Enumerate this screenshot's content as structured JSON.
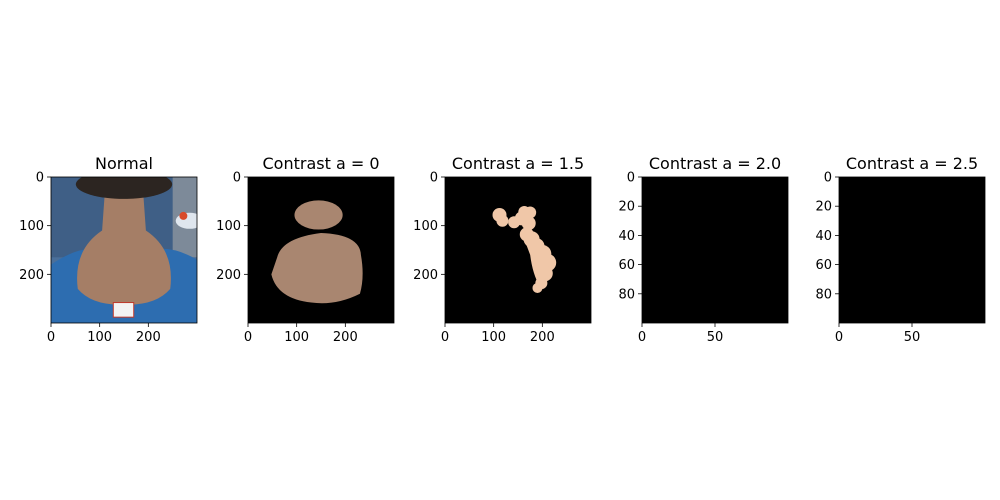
{
  "figure": {
    "background": "#ffffff"
  },
  "chart_data": [
    {
      "type": "image",
      "title": "Normal",
      "image_extent": [
        300,
        300
      ],
      "xlim": [
        0,
        300
      ],
      "ylim": [
        300,
        0
      ],
      "x_ticks": [
        0,
        100,
        200
      ],
      "y_ticks": [
        0,
        100,
        200
      ],
      "content": "photo",
      "colors": {
        "background": "#4a6f9a",
        "skin": "#a57e66",
        "shirt": "#2d6db0",
        "hair": "#2c2521"
      }
    },
    {
      "type": "image",
      "title": "Contrast a = 0",
      "image_extent": [
        300,
        300
      ],
      "xlim": [
        0,
        300
      ],
      "ylim": [
        300,
        0
      ],
      "x_ticks": [
        0,
        100,
        200
      ],
      "y_ticks": [
        0,
        100,
        200
      ],
      "content": "mask-full",
      "colors": {
        "background": "#000000",
        "skin": "#a98670"
      }
    },
    {
      "type": "image",
      "title": "Contrast a = 1.5",
      "image_extent": [
        300,
        300
      ],
      "xlim": [
        0,
        300
      ],
      "ylim": [
        300,
        0
      ],
      "x_ticks": [
        0,
        100,
        200
      ],
      "y_ticks": [
        0,
        100,
        200
      ],
      "content": "mask-partial",
      "colors": {
        "background": "#000000",
        "skin": "#f0c7a8"
      }
    },
    {
      "type": "image",
      "title": "Contrast a = 2.0",
      "image_extent": [
        100,
        100
      ],
      "xlim": [
        0,
        100
      ],
      "ylim": [
        100,
        0
      ],
      "x_ticks": [
        0,
        50
      ],
      "y_ticks": [
        0,
        20,
        40,
        60,
        80
      ],
      "content": "empty",
      "colors": {
        "background": "#000000"
      }
    },
    {
      "type": "image",
      "title": "Contrast a = 2.5",
      "image_extent": [
        100,
        100
      ],
      "xlim": [
        0,
        100
      ],
      "ylim": [
        100,
        0
      ],
      "x_ticks": [
        0,
        50
      ],
      "y_ticks": [
        0,
        20,
        40,
        60,
        80
      ],
      "content": "empty",
      "colors": {
        "background": "#000000"
      }
    }
  ]
}
